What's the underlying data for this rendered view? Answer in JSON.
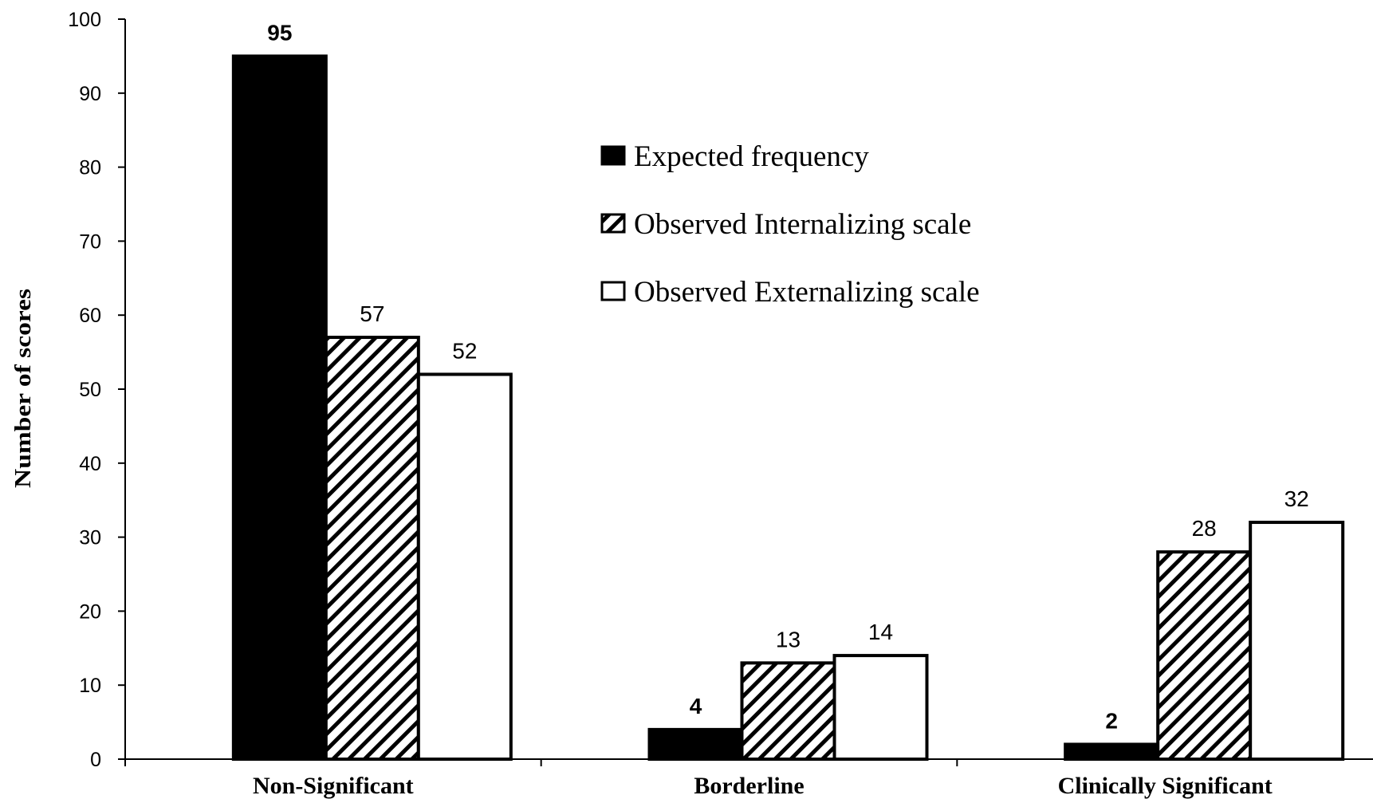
{
  "chart_data": {
    "type": "bar",
    "categories": [
      "Non-Significant",
      "Borderline",
      "Clinically Significant"
    ],
    "series": [
      {
        "name": "Expected frequency",
        "values": [
          95,
          4,
          2
        ],
        "fill": "solid",
        "color": "#000000",
        "label_bold": true
      },
      {
        "name": "Observed Internalizing scale",
        "values": [
          57,
          13,
          28
        ],
        "fill": "hatch",
        "color": "#000000",
        "label_bold": false
      },
      {
        "name": "Observed Externalizing scale",
        "values": [
          52,
          14,
          32
        ],
        "fill": "none",
        "color": "#ffffff",
        "label_bold": false
      }
    ],
    "title": "",
    "xlabel": "",
    "ylabel": "Number of scores",
    "ylim": [
      0,
      100
    ],
    "yticks": [
      0,
      10,
      20,
      30,
      40,
      50,
      60,
      70,
      80,
      90,
      100
    ],
    "grid": false,
    "legend_position": "top-right"
  }
}
